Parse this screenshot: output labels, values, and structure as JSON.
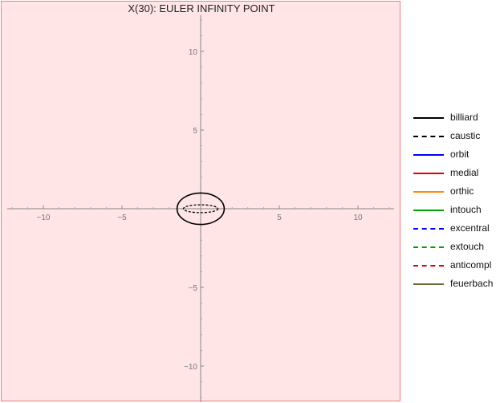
{
  "chart_data": {
    "type": "line",
    "title": "X(30): EULER INFINITY POINT",
    "xlim": [
      -12.3,
      12.3
    ],
    "ylim": [
      -12.3,
      12.3
    ],
    "x_ticks": [
      {
        "value": -10,
        "label": "−10"
      },
      {
        "value": -5,
        "label": "−5"
      },
      {
        "value": 5,
        "label": "5"
      },
      {
        "value": 10,
        "label": "10"
      }
    ],
    "y_ticks": [
      {
        "value": 10,
        "label": "10"
      },
      {
        "value": 5,
        "label": "5"
      },
      {
        "value": -5,
        "label": "−5"
      },
      {
        "value": -10,
        "label": "−10"
      }
    ],
    "grid": false,
    "legend_position": "right",
    "background_color": "#ffe5e5",
    "series": [
      {
        "name": "billiard",
        "color": "#000000",
        "dash": "solid",
        "shape": "ellipse",
        "center": [
          0,
          0
        ],
        "semi_axes": [
          1.5,
          1.0
        ]
      },
      {
        "name": "caustic",
        "color": "#000000",
        "dash": "dashed",
        "shape": "ellipse",
        "center": [
          0,
          0
        ],
        "semi_axes": [
          1.1,
          0.25
        ]
      },
      {
        "name": "orbit",
        "color": "#0000ff",
        "dash": "solid"
      },
      {
        "name": "medial",
        "color": "#e00000",
        "dash": "solid"
      },
      {
        "name": "orthic",
        "color": "#ff8c00",
        "dash": "solid"
      },
      {
        "name": "intouch",
        "color": "#00a000",
        "dash": "solid"
      },
      {
        "name": "excentral",
        "color": "#0000ff",
        "dash": "dashed"
      },
      {
        "name": "extouch",
        "color": "#00a000",
        "dash": "dashed"
      },
      {
        "name": "anticompl",
        "color": "#e00000",
        "dash": "dashed"
      },
      {
        "name": "feuerbach",
        "color": "#6b6b3a",
        "dash": "solid"
      }
    ]
  }
}
